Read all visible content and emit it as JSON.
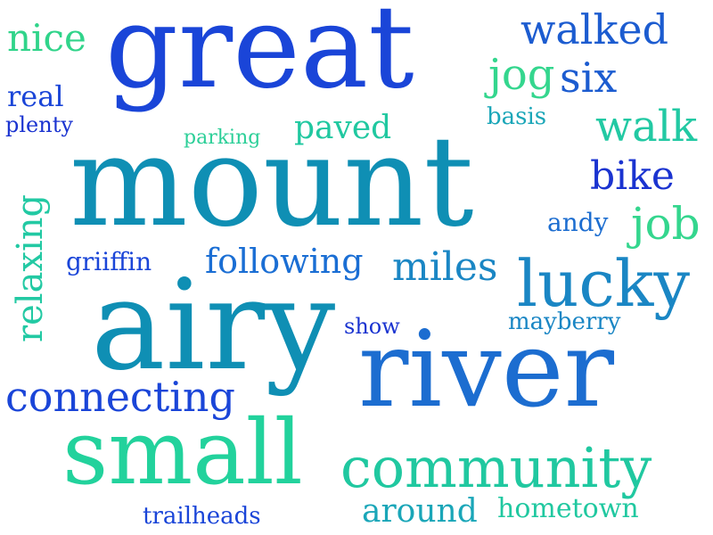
{
  "palette": {
    "blue_dark": "#1a3fd6",
    "blue": "#1c6dd0",
    "teal": "#0f8fb4",
    "cyan": "#1aa6b8",
    "green": "#23d19a",
    "mint": "#20c8a0"
  },
  "words": {
    "great": "great",
    "mount": "mount",
    "airy": "airy",
    "river": "river",
    "small": "small",
    "community": "community",
    "lucky": "lucky",
    "connecting": "connecting",
    "walked": "walked",
    "miles": "miles",
    "following": "following",
    "walk": "walk",
    "job": "job",
    "bike": "bike",
    "jog": "jog",
    "six": "six",
    "nice": "nice",
    "real": "real",
    "plenty": "plenty",
    "paved": "paved",
    "parking": "parking",
    "basis": "basis",
    "andy": "andy",
    "griiffin": "griiffin",
    "show": "show",
    "mayberry": "mayberry",
    "relaxing": "relaxing",
    "around": "around",
    "hometown": "hometown",
    "trailheads": "trailheads"
  }
}
